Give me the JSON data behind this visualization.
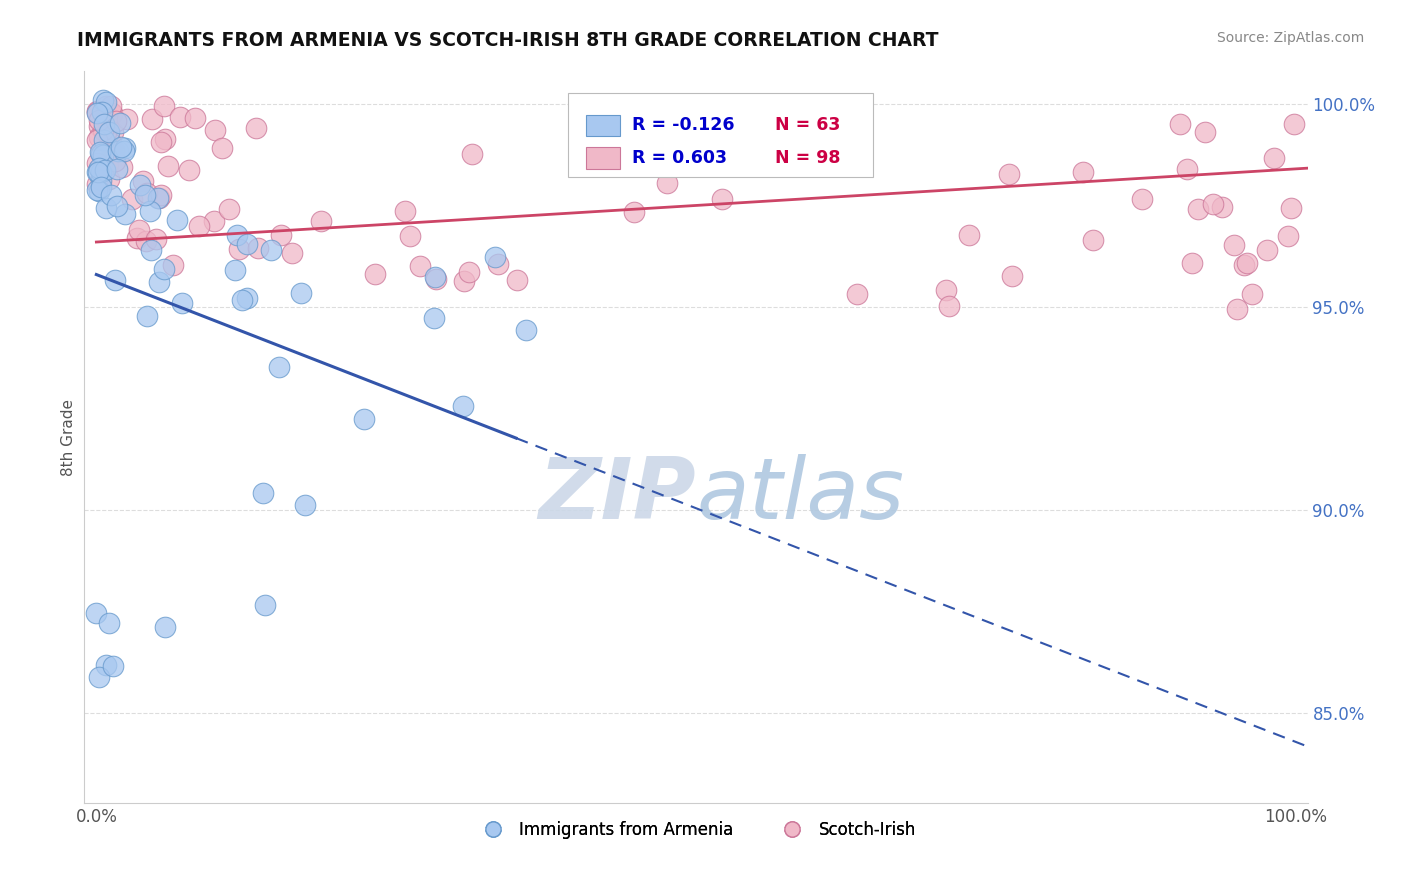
{
  "title": "IMMIGRANTS FROM ARMENIA VS SCOTCH-IRISH 8TH GRADE CORRELATION CHART",
  "source_text": "Source: ZipAtlas.com",
  "ylabel": "8th Grade",
  "ytick_values": [
    0.85,
    0.9,
    0.95,
    1.0
  ],
  "ylim": [
    0.828,
    1.008
  ],
  "xlim": [
    -0.01,
    1.01
  ],
  "armenia_color": "#a8c8f0",
  "armenia_edge_color": "#6699cc",
  "scotch_color": "#f0b8c8",
  "scotch_edge_color": "#cc7799",
  "armenia_R": -0.126,
  "armenia_N": 63,
  "scotch_R": 0.603,
  "scotch_N": 98,
  "legend_label_armenia": "Immigrants from Armenia",
  "legend_label_scotch": "Scotch-Irish",
  "grid_color": "#dddddd",
  "watermark_color": "#ccd8e8",
  "armenia_trend_color": "#3355aa",
  "scotch_trend_color": "#cc4466",
  "ytick_color": "#4472c4",
  "R_color": "#0000cc",
  "N_color": "#cc0044"
}
